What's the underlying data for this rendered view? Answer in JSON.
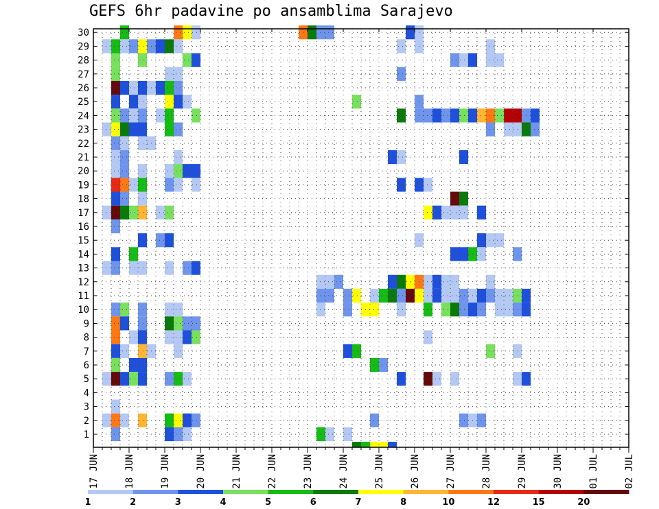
{
  "chart_data": {
    "type": "heatmap",
    "title": "GEFS 6hr padavine po ansamblima Sarajevo",
    "xlabel": "",
    "ylabel": "",
    "x_tick_labels": [
      "17 JUN",
      "18 JUN",
      "19 JUN",
      "20 JUN",
      "21 JUN",
      "22 JUN",
      "23 JUN",
      "24 JUN",
      "25 JUN",
      "26 JUN",
      "27 JUN",
      "28 JUN",
      "29 JUN",
      "30 JUN",
      "01 JUL",
      "02 JUL"
    ],
    "y_tick_labels": [
      "1",
      "2",
      "3",
      "4",
      "5",
      "6",
      "7",
      "8",
      "9",
      "10",
      "11",
      "12",
      "13",
      "14",
      "15",
      "16",
      "17",
      "18",
      "19",
      "20",
      "21",
      "22",
      "23",
      "24",
      "25",
      "26",
      "27",
      "28",
      "29",
      "30"
    ],
    "x_range_days": [
      0,
      15
    ],
    "time_step_hours": 6,
    "y_range_members": [
      1,
      30
    ],
    "grid": "dotted",
    "colorbar": {
      "position": "bottom",
      "boundaries": [
        "1",
        "2",
        "3",
        "4",
        "5",
        "6",
        "7",
        "8",
        "10",
        "12",
        "15",
        "20"
      ],
      "colors": [
        "#b4c8f4",
        "#6e94ec",
        "#1e50dc",
        "#78e05c",
        "#14bc14",
        "#0a7a0a",
        "#ffff00",
        "#ffb432",
        "#ff7814",
        "#e62814",
        "#b40000",
        "#640a0a"
      ]
    },
    "cells": [
      [
        30,
        3,
        5
      ],
      [
        30,
        9,
        9
      ],
      [
        30,
        10,
        7
      ],
      [
        30,
        11,
        1
      ],
      [
        30,
        23,
        9
      ],
      [
        30,
        24,
        6
      ],
      [
        30,
        25,
        2
      ],
      [
        30,
        26,
        2
      ],
      [
        30,
        35,
        3
      ],
      [
        30,
        36,
        1
      ],
      [
        29,
        1,
        1
      ],
      [
        29,
        2,
        5
      ],
      [
        29,
        3,
        1
      ],
      [
        29,
        4,
        2
      ],
      [
        29,
        5,
        7
      ],
      [
        29,
        6,
        2
      ],
      [
        29,
        7,
        3
      ],
      [
        29,
        8,
        6
      ],
      [
        29,
        9,
        1
      ],
      [
        29,
        34,
        1
      ],
      [
        29,
        36,
        1
      ],
      [
        29,
        44,
        1
      ],
      [
        28,
        2,
        4
      ],
      [
        28,
        5,
        4
      ],
      [
        28,
        10,
        4
      ],
      [
        28,
        11,
        3
      ],
      [
        28,
        40,
        2
      ],
      [
        28,
        41,
        1
      ],
      [
        28,
        42,
        3
      ],
      [
        28,
        44,
        1
      ],
      [
        28,
        45,
        1
      ],
      [
        27,
        2,
        4
      ],
      [
        27,
        8,
        1
      ],
      [
        27,
        9,
        1
      ],
      [
        27,
        34,
        2
      ],
      [
        26,
        2,
        12
      ],
      [
        26,
        3,
        3
      ],
      [
        26,
        4,
        1
      ],
      [
        26,
        5,
        3
      ],
      [
        26,
        6,
        1
      ],
      [
        26,
        7,
        3
      ],
      [
        26,
        8,
        5
      ],
      [
        26,
        9,
        2
      ],
      [
        25,
        2,
        3
      ],
      [
        25,
        4,
        3
      ],
      [
        25,
        5,
        1
      ],
      [
        25,
        8,
        7
      ],
      [
        25,
        9,
        3
      ],
      [
        25,
        10,
        1
      ],
      [
        25,
        29,
        4
      ],
      [
        25,
        36,
        2
      ],
      [
        24,
        2,
        4
      ],
      [
        24,
        3,
        2
      ],
      [
        24,
        4,
        1
      ],
      [
        24,
        5,
        2
      ],
      [
        24,
        7,
        1
      ],
      [
        24,
        8,
        5
      ],
      [
        24,
        11,
        4
      ],
      [
        24,
        34,
        6
      ],
      [
        24,
        36,
        2
      ],
      [
        24,
        37,
        2
      ],
      [
        24,
        38,
        3
      ],
      [
        24,
        39,
        2
      ],
      [
        24,
        40,
        3
      ],
      [
        24,
        41,
        4
      ],
      [
        24,
        42,
        3
      ],
      [
        24,
        43,
        8
      ],
      [
        24,
        44,
        9
      ],
      [
        24,
        45,
        4
      ],
      [
        24,
        46,
        11
      ],
      [
        24,
        47,
        11
      ],
      [
        24,
        48,
        2
      ],
      [
        24,
        49,
        3
      ],
      [
        23,
        1,
        1
      ],
      [
        23,
        2,
        7
      ],
      [
        23,
        3,
        6
      ],
      [
        23,
        4,
        3
      ],
      [
        23,
        5,
        3
      ],
      [
        23,
        8,
        5
      ],
      [
        23,
        9,
        2
      ],
      [
        23,
        44,
        2
      ],
      [
        23,
        46,
        1
      ],
      [
        23,
        47,
        1
      ],
      [
        23,
        48,
        6
      ],
      [
        23,
        49,
        2
      ],
      [
        22,
        2,
        2
      ],
      [
        22,
        3,
        1
      ],
      [
        22,
        5,
        1
      ],
      [
        22,
        6,
        1
      ],
      [
        21,
        2,
        1
      ],
      [
        21,
        3,
        2
      ],
      [
        21,
        9,
        1
      ],
      [
        21,
        33,
        3
      ],
      [
        21,
        34,
        1
      ],
      [
        21,
        41,
        3
      ],
      [
        20,
        2,
        1
      ],
      [
        20,
        3,
        2
      ],
      [
        20,
        5,
        1
      ],
      [
        20,
        8,
        1
      ],
      [
        20,
        9,
        4
      ],
      [
        20,
        10,
        3
      ],
      [
        20,
        11,
        3
      ],
      [
        19,
        2,
        10
      ],
      [
        19,
        3,
        9
      ],
      [
        19,
        4,
        1
      ],
      [
        19,
        5,
        5
      ],
      [
        19,
        8,
        2
      ],
      [
        19,
        9,
        1
      ],
      [
        19,
        11,
        1
      ],
      [
        19,
        34,
        3
      ],
      [
        19,
        36,
        3
      ],
      [
        19,
        37,
        1
      ],
      [
        18,
        2,
        3
      ],
      [
        18,
        3,
        2
      ],
      [
        18,
        5,
        1
      ],
      [
        18,
        40,
        12
      ],
      [
        18,
        41,
        6
      ],
      [
        17,
        1,
        1
      ],
      [
        17,
        2,
        12
      ],
      [
        17,
        3,
        6
      ],
      [
        17,
        4,
        4
      ],
      [
        17,
        5,
        8
      ],
      [
        17,
        7,
        1
      ],
      [
        17,
        8,
        4
      ],
      [
        17,
        37,
        7
      ],
      [
        17,
        38,
        3
      ],
      [
        17,
        39,
        1
      ],
      [
        17,
        40,
        1
      ],
      [
        17,
        41,
        1
      ],
      [
        17,
        43,
        3
      ],
      [
        16,
        2,
        2
      ],
      [
        15,
        5,
        3
      ],
      [
        15,
        7,
        2
      ],
      [
        15,
        8,
        3
      ],
      [
        15,
        36,
        1
      ],
      [
        15,
        43,
        3
      ],
      [
        15,
        44,
        1
      ],
      [
        15,
        45,
        1
      ],
      [
        14,
        2,
        3
      ],
      [
        14,
        4,
        5
      ],
      [
        14,
        40,
        3
      ],
      [
        14,
        41,
        3
      ],
      [
        14,
        42,
        5
      ],
      [
        14,
        43,
        1
      ],
      [
        14,
        47,
        2
      ],
      [
        13,
        1,
        1
      ],
      [
        13,
        2,
        2
      ],
      [
        13,
        4,
        1
      ],
      [
        13,
        5,
        1
      ],
      [
        13,
        8,
        1
      ],
      [
        13,
        10,
        2
      ],
      [
        13,
        11,
        3
      ],
      [
        12,
        25,
        1
      ],
      [
        12,
        26,
        1
      ],
      [
        12,
        27,
        2
      ],
      [
        12,
        33,
        3
      ],
      [
        12,
        34,
        6
      ],
      [
        12,
        35,
        7
      ],
      [
        12,
        36,
        9
      ],
      [
        12,
        37,
        1
      ],
      [
        12,
        38,
        3
      ],
      [
        12,
        39,
        1
      ],
      [
        12,
        40,
        1
      ],
      [
        12,
        44,
        1
      ],
      [
        11,
        25,
        2
      ],
      [
        11,
        26,
        2
      ],
      [
        11,
        28,
        2
      ],
      [
        11,
        29,
        7
      ],
      [
        11,
        31,
        1
      ],
      [
        11,
        32,
        5
      ],
      [
        11,
        33,
        6
      ],
      [
        11,
        34,
        2
      ],
      [
        11,
        35,
        12
      ],
      [
        11,
        36,
        7
      ],
      [
        11,
        37,
        1
      ],
      [
        11,
        38,
        3
      ],
      [
        11,
        39,
        1
      ],
      [
        11,
        40,
        1
      ],
      [
        11,
        41,
        2
      ],
      [
        11,
        42,
        1
      ],
      [
        11,
        43,
        3
      ],
      [
        11,
        44,
        2
      ],
      [
        11,
        45,
        1
      ],
      [
        11,
        46,
        1
      ],
      [
        11,
        47,
        4
      ],
      [
        11,
        48,
        3
      ],
      [
        10,
        2,
        2
      ],
      [
        10,
        3,
        4
      ],
      [
        10,
        5,
        2
      ],
      [
        10,
        8,
        1
      ],
      [
        10,
        9,
        1
      ],
      [
        10,
        25,
        1
      ],
      [
        10,
        28,
        2
      ],
      [
        10,
        30,
        7
      ],
      [
        10,
        31,
        7
      ],
      [
        10,
        34,
        1
      ],
      [
        10,
        37,
        5
      ],
      [
        10,
        39,
        4
      ],
      [
        10,
        40,
        6
      ],
      [
        10,
        41,
        2
      ],
      [
        10,
        42,
        3
      ],
      [
        10,
        43,
        2
      ],
      [
        10,
        45,
        1
      ],
      [
        10,
        46,
        1
      ],
      [
        10,
        47,
        2
      ],
      [
        10,
        48,
        3
      ],
      [
        9,
        2,
        9
      ],
      [
        9,
        3,
        3
      ],
      [
        9,
        5,
        2
      ],
      [
        9,
        8,
        6
      ],
      [
        9,
        9,
        4
      ],
      [
        9,
        10,
        2
      ],
      [
        9,
        11,
        2
      ],
      [
        8,
        2,
        9
      ],
      [
        8,
        4,
        1
      ],
      [
        8,
        5,
        3
      ],
      [
        8,
        8,
        1
      ],
      [
        8,
        9,
        1
      ],
      [
        8,
        10,
        3
      ],
      [
        8,
        11,
        4
      ],
      [
        8,
        37,
        1
      ],
      [
        7,
        2,
        3
      ],
      [
        7,
        3,
        1
      ],
      [
        7,
        5,
        8
      ],
      [
        7,
        6,
        1
      ],
      [
        7,
        9,
        1
      ],
      [
        7,
        28,
        3
      ],
      [
        7,
        29,
        5
      ],
      [
        7,
        44,
        4
      ],
      [
        7,
        47,
        1
      ],
      [
        6,
        2,
        4
      ],
      [
        6,
        4,
        3
      ],
      [
        6,
        5,
        3
      ],
      [
        6,
        31,
        5
      ],
      [
        6,
        32,
        2
      ],
      [
        5,
        1,
        1
      ],
      [
        5,
        2,
        12
      ],
      [
        5,
        3,
        3
      ],
      [
        5,
        4,
        4
      ],
      [
        5,
        5,
        3
      ],
      [
        5,
        8,
        2
      ],
      [
        5,
        9,
        5
      ],
      [
        5,
        10,
        1
      ],
      [
        5,
        34,
        3
      ],
      [
        5,
        37,
        12
      ],
      [
        5,
        38,
        1
      ],
      [
        5,
        40,
        1
      ],
      [
        5,
        47,
        1
      ],
      [
        5,
        48,
        3
      ],
      [
        3,
        2,
        1
      ],
      [
        2,
        1,
        1
      ],
      [
        2,
        2,
        9
      ],
      [
        2,
        3,
        1
      ],
      [
        2,
        5,
        8
      ],
      [
        2,
        8,
        5
      ],
      [
        2,
        9,
        7
      ],
      [
        2,
        10,
        3
      ],
      [
        2,
        11,
        2
      ],
      [
        2,
        31,
        2
      ],
      [
        2,
        41,
        2
      ],
      [
        2,
        42,
        1
      ],
      [
        2,
        43,
        2
      ],
      [
        1,
        2,
        2
      ],
      [
        1,
        8,
        3
      ],
      [
        1,
        9,
        2
      ],
      [
        1,
        10,
        1
      ],
      [
        1,
        25,
        5
      ],
      [
        1,
        26,
        1
      ],
      [
        1,
        28,
        1
      ]
    ],
    "cells_below_member1": [
      [
        29,
        6
      ],
      [
        30,
        5
      ],
      [
        31,
        7
      ],
      [
        32,
        7
      ],
      [
        33,
        3
      ]
    ]
  }
}
